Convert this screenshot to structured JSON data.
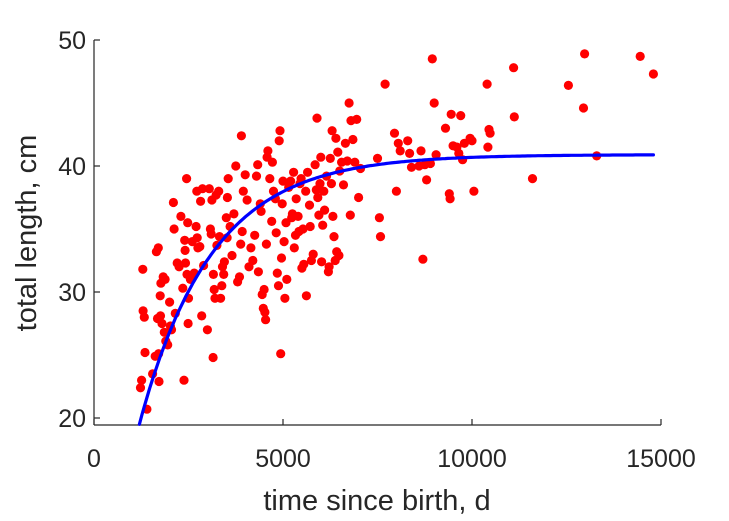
{
  "chart_data": {
    "type": "scatter",
    "xlabel": "time since birth, d",
    "ylabel": "total length, cm",
    "xlim": [
      0,
      15000
    ],
    "ylim": [
      19.5,
      50
    ],
    "xticks": [
      0,
      5000,
      10000,
      15000
    ],
    "yticks": [
      20,
      30,
      40,
      50
    ],
    "xtick_labels": [
      "0",
      "5000",
      "10000",
      "15000"
    ],
    "ytick_labels": [
      "20",
      "30",
      "40",
      "50"
    ],
    "grid": false,
    "legend": "none",
    "colors": {
      "points": "#ff0000",
      "fit": "#0000ff",
      "axis": "#262626"
    },
    "series": [
      {
        "kind": "points",
        "points": [
          [
            1230,
            22.4
          ],
          [
            1260,
            23.0
          ],
          [
            1290,
            31.8
          ],
          [
            1300,
            28.5
          ],
          [
            1330,
            28.0
          ],
          [
            1350,
            25.2
          ],
          [
            1400,
            20.7
          ],
          [
            1550,
            23.5
          ],
          [
            1620,
            24.9
          ],
          [
            1650,
            33.2
          ],
          [
            1680,
            27.9
          ],
          [
            1700,
            33.5
          ],
          [
            1710,
            25.1
          ],
          [
            1720,
            22.9
          ],
          [
            1750,
            29.7
          ],
          [
            1760,
            28.1
          ],
          [
            1770,
            30.7
          ],
          [
            1800,
            27.5
          ],
          [
            1830,
            31.2
          ],
          [
            1860,
            26.8
          ],
          [
            1880,
            31.0
          ],
          [
            1900,
            26.1
          ],
          [
            1950,
            25.8
          ],
          [
            2000,
            29.2
          ],
          [
            2020,
            27.3
          ],
          [
            2050,
            27.0
          ],
          [
            2100,
            37.1
          ],
          [
            2120,
            35.0
          ],
          [
            2150,
            28.3
          ],
          [
            2200,
            32.3
          ],
          [
            2250,
            32.0
          ],
          [
            2300,
            36.0
          ],
          [
            2350,
            30.3
          ],
          [
            2380,
            23.0
          ],
          [
            2400,
            34.1
          ],
          [
            2410,
            33.3
          ],
          [
            2420,
            32.3
          ],
          [
            2450,
            39.0
          ],
          [
            2460,
            31.4
          ],
          [
            2480,
            35.5
          ],
          [
            2490,
            27.5
          ],
          [
            2500,
            29.5
          ],
          [
            2550,
            31.0
          ],
          [
            2600,
            34.0
          ],
          [
            2650,
            31.5
          ],
          [
            2700,
            35.2
          ],
          [
            2720,
            38.0
          ],
          [
            2730,
            34.3
          ],
          [
            2750,
            33.5
          ],
          [
            2800,
            33.6
          ],
          [
            2820,
            37.2
          ],
          [
            2850,
            28.1
          ],
          [
            2870,
            38.2
          ],
          [
            2900,
            32.1
          ],
          [
            3000,
            27.0
          ],
          [
            3050,
            38.2
          ],
          [
            3080,
            35.0
          ],
          [
            3100,
            34.6
          ],
          [
            3120,
            37.3
          ],
          [
            3150,
            24.8
          ],
          [
            3160,
            31.4
          ],
          [
            3180,
            30.2
          ],
          [
            3200,
            29.5
          ],
          [
            3230,
            37.7
          ],
          [
            3250,
            33.7
          ],
          [
            3300,
            38.0
          ],
          [
            3320,
            34.4
          ],
          [
            3350,
            29.5
          ],
          [
            3380,
            30.5
          ],
          [
            3400,
            32.0
          ],
          [
            3430,
            31.4
          ],
          [
            3450,
            32.4
          ],
          [
            3500,
            35.9
          ],
          [
            3520,
            34.3
          ],
          [
            3530,
            37.5
          ],
          [
            3550,
            39.0
          ],
          [
            3600,
            35.2
          ],
          [
            3650,
            32.9
          ],
          [
            3700,
            36.2
          ],
          [
            3750,
            40.0
          ],
          [
            3800,
            30.8
          ],
          [
            3850,
            31.2
          ],
          [
            3880,
            33.8
          ],
          [
            3900,
            42.4
          ],
          [
            3920,
            34.8
          ],
          [
            3950,
            38.0
          ],
          [
            4000,
            39.3
          ],
          [
            4050,
            37.3
          ],
          [
            4100,
            32.0
          ],
          [
            4150,
            33.5
          ],
          [
            4200,
            32.5
          ],
          [
            4250,
            34.5
          ],
          [
            4300,
            39.2
          ],
          [
            4330,
            40.1
          ],
          [
            4350,
            31.6
          ],
          [
            4400,
            37.0
          ],
          [
            4420,
            36.4
          ],
          [
            4450,
            29.8
          ],
          [
            4480,
            28.7
          ],
          [
            4500,
            30.2
          ],
          [
            4520,
            28.4
          ],
          [
            4540,
            27.8
          ],
          [
            4560,
            33.8
          ],
          [
            4580,
            40.7
          ],
          [
            4600,
            41.2
          ],
          [
            4650,
            39.0
          ],
          [
            4700,
            35.6
          ],
          [
            4720,
            40.3
          ],
          [
            4750,
            38.0
          ],
          [
            4800,
            37.4
          ],
          [
            4820,
            34.7
          ],
          [
            4850,
            31.5
          ],
          [
            4880,
            30.5
          ],
          [
            4900,
            42.0
          ],
          [
            4920,
            42.8
          ],
          [
            4940,
            25.1
          ],
          [
            4960,
            32.7
          ],
          [
            4980,
            37.0
          ],
          [
            5000,
            38.8
          ],
          [
            5030,
            34.0
          ],
          [
            5050,
            29.5
          ],
          [
            5080,
            35.5
          ],
          [
            5100,
            31.0
          ],
          [
            5150,
            38.3
          ],
          [
            5200,
            38.8
          ],
          [
            5230,
            35.9
          ],
          [
            5250,
            36.2
          ],
          [
            5280,
            39.5
          ],
          [
            5300,
            33.5
          ],
          [
            5330,
            34.5
          ],
          [
            5350,
            37.4
          ],
          [
            5400,
            36.0
          ],
          [
            5420,
            34.8
          ],
          [
            5450,
            38.6
          ],
          [
            5480,
            39.0
          ],
          [
            5500,
            31.9
          ],
          [
            5530,
            35.0
          ],
          [
            5550,
            32.2
          ],
          [
            5600,
            38.0
          ],
          [
            5620,
            29.7
          ],
          [
            5650,
            39.5
          ],
          [
            5700,
            36.9
          ],
          [
            5720,
            35.2
          ],
          [
            5750,
            32.5
          ],
          [
            5800,
            33.0
          ],
          [
            5850,
            40.1
          ],
          [
            5880,
            38.1
          ],
          [
            5900,
            43.8
          ],
          [
            5920,
            37.5
          ],
          [
            5950,
            36.1
          ],
          [
            5980,
            38.6
          ],
          [
            6000,
            40.7
          ],
          [
            6020,
            32.4
          ],
          [
            6050,
            35.3
          ],
          [
            6080,
            38.0
          ],
          [
            6100,
            36.5
          ],
          [
            6150,
            39.2
          ],
          [
            6200,
            31.6
          ],
          [
            6220,
            32.0
          ],
          [
            6250,
            40.6
          ],
          [
            6280,
            38.6
          ],
          [
            6300,
            42.8
          ],
          [
            6320,
            36.0
          ],
          [
            6350,
            34.4
          ],
          [
            6380,
            32.5
          ],
          [
            6400,
            42.2
          ],
          [
            6420,
            33.2
          ],
          [
            6450,
            41.1
          ],
          [
            6480,
            32.9
          ],
          [
            6500,
            39.6
          ],
          [
            6550,
            40.3
          ],
          [
            6600,
            38.5
          ],
          [
            6650,
            41.8
          ],
          [
            6700,
            40.4
          ],
          [
            6750,
            45.0
          ],
          [
            6780,
            36.1
          ],
          [
            6800,
            43.6
          ],
          [
            6850,
            42.1
          ],
          [
            6900,
            40.3
          ],
          [
            6950,
            43.7
          ],
          [
            7000,
            37.5
          ],
          [
            7050,
            39.8
          ],
          [
            7500,
            40.6
          ],
          [
            7550,
            35.9
          ],
          [
            7580,
            34.4
          ],
          [
            7700,
            46.5
          ],
          [
            7950,
            42.6
          ],
          [
            8000,
            38.0
          ],
          [
            8050,
            41.8
          ],
          [
            8100,
            41.2
          ],
          [
            8300,
            42.0
          ],
          [
            8350,
            41.0
          ],
          [
            8400,
            39.9
          ],
          [
            8600,
            40.0
          ],
          [
            8650,
            41.2
          ],
          [
            8700,
            32.6
          ],
          [
            8750,
            40.1
          ],
          [
            8800,
            38.9
          ],
          [
            8900,
            40.2
          ],
          [
            8950,
            48.5
          ],
          [
            9000,
            45.0
          ],
          [
            9050,
            40.9
          ],
          [
            9300,
            43.0
          ],
          [
            9400,
            37.8
          ],
          [
            9420,
            37.4
          ],
          [
            9450,
            44.1
          ],
          [
            9500,
            41.6
          ],
          [
            9600,
            41.5
          ],
          [
            9650,
            41.0
          ],
          [
            9700,
            44.0
          ],
          [
            9750,
            40.5
          ],
          [
            9800,
            41.8
          ],
          [
            9950,
            42.2
          ],
          [
            10000,
            42.0
          ],
          [
            10050,
            38.0
          ],
          [
            10400,
            46.5
          ],
          [
            10420,
            41.5
          ],
          [
            10450,
            42.9
          ],
          [
            10480,
            42.6
          ],
          [
            11100,
            47.8
          ],
          [
            11120,
            43.9
          ],
          [
            11600,
            39.0
          ],
          [
            12550,
            46.4
          ],
          [
            12950,
            44.6
          ],
          [
            12980,
            48.9
          ],
          [
            13300,
            40.8
          ],
          [
            14450,
            48.7
          ],
          [
            14800,
            47.3
          ]
        ]
      },
      {
        "kind": "fit_curve",
        "model": "von Bertalanffy",
        "Linf": 40.9,
        "L0": 19.5,
        "k": 0.000523,
        "t0": 1200,
        "x_range": [
          1200,
          14800
        ]
      }
    ]
  }
}
